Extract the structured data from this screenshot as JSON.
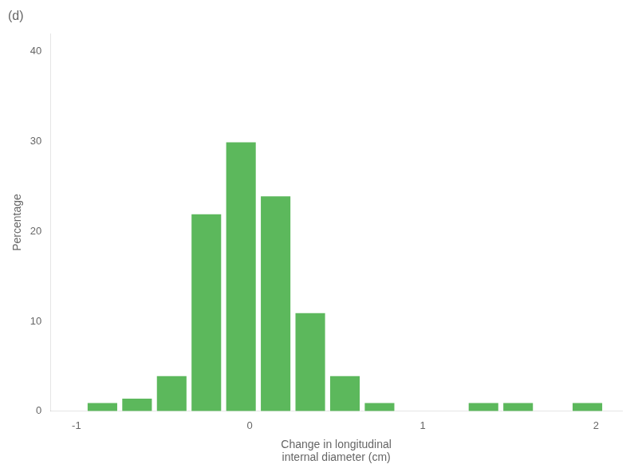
{
  "chart_data": {
    "type": "bar",
    "title": "(d)",
    "x": [
      -0.85,
      -0.65,
      -0.45,
      -0.25,
      -0.05,
      0.15,
      0.35,
      0.55,
      0.75,
      1.35,
      1.55,
      1.95
    ],
    "values": [
      1,
      1.5,
      4,
      22,
      30,
      24,
      11,
      4,
      1,
      1,
      1,
      1
    ],
    "color": "#5cb85c",
    "xlabel": "Change in longitudinal\ninternal diameter (cm)",
    "ylabel": "Percentage",
    "xlim": [
      -1.15,
      2.15
    ],
    "ylim": [
      0,
      42
    ],
    "xticks": [
      -1,
      0,
      1,
      2
    ],
    "yticks": [
      0,
      10,
      20,
      30,
      40
    ],
    "grid": false
  }
}
